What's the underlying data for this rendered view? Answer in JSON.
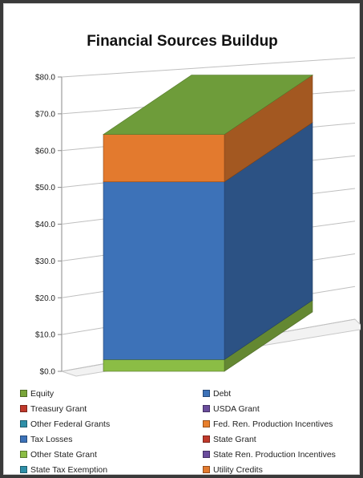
{
  "chart_data": {
    "type": "bar",
    "stacked": true,
    "three_d": true,
    "title": "Financial Sources Buildup",
    "categories": [
      ""
    ],
    "ylim": [
      0,
      80
    ],
    "y_ticks": [
      "$0.0",
      "$10.0",
      "$20.0",
      "$30.0",
      "$40.0",
      "$50.0",
      "$60.0",
      "$70.0",
      "$80.0"
    ],
    "grid": true,
    "legend_position": "bottom",
    "series": [
      {
        "name": "Equity",
        "values": [
          0
        ],
        "color": "#7aa63a"
      },
      {
        "name": "Debt",
        "values": [
          48.3
        ],
        "color": "#3d72b8"
      },
      {
        "name": "Treasury Grant",
        "values": [
          0
        ],
        "color": "#c0392b"
      },
      {
        "name": "USDA Grant",
        "values": [
          0
        ],
        "color": "#6a4c9c"
      },
      {
        "name": "Other Federal Grants",
        "values": [
          0
        ],
        "color": "#2e8fa8"
      },
      {
        "name": "Fed. Ren. Production Incentives",
        "values": [
          0
        ],
        "color": "#e87f2c"
      },
      {
        "name": "Tax Losses",
        "values": [
          0
        ],
        "color": "#3d72b8"
      },
      {
        "name": "State Grant",
        "values": [
          0
        ],
        "color": "#c0392b"
      },
      {
        "name": "Other State Grant",
        "values": [
          3.2
        ],
        "color": "#8bbd45"
      },
      {
        "name": "State Ren. Production Incentives",
        "values": [
          0
        ],
        "color": "#6a4c9c"
      },
      {
        "name": "State Tax Exemption",
        "values": [
          0
        ],
        "color": "#2e8fa8"
      },
      {
        "name": "Utility Credits",
        "values": [
          12.9
        ],
        "color": "#e37a2e"
      }
    ]
  }
}
